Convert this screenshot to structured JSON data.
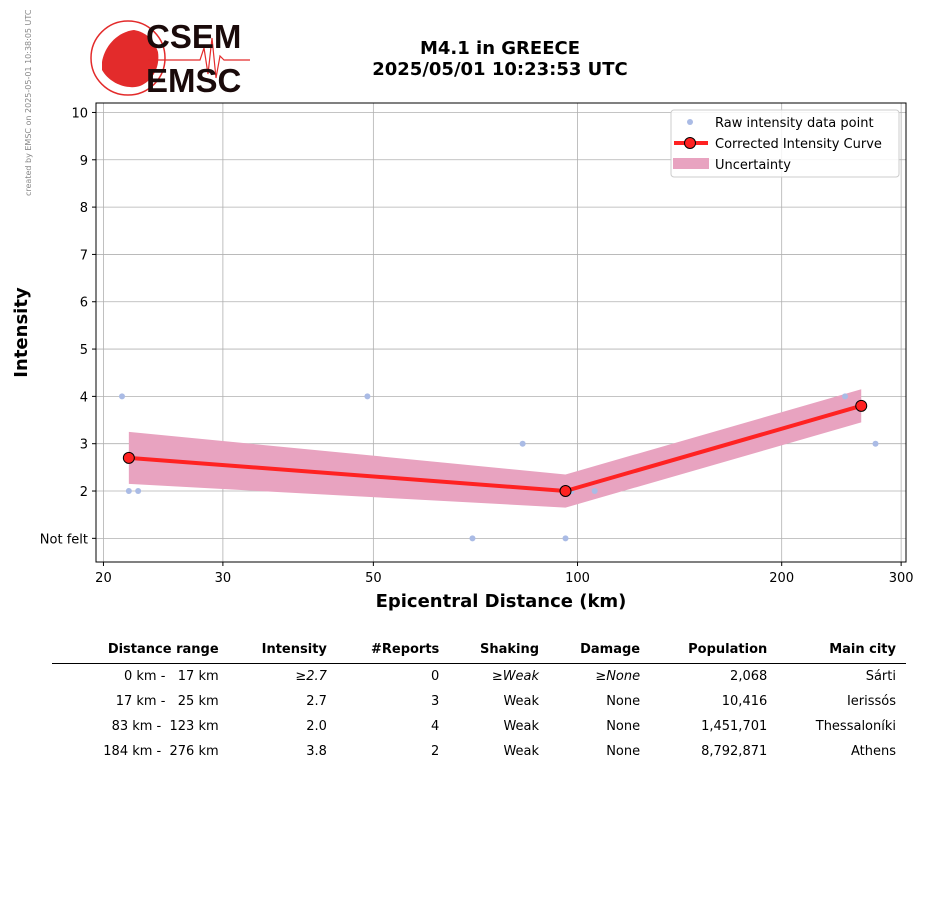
{
  "credit": "created by EMSC on 2025-05-01 10:38:05 UTC",
  "logo": {
    "line1": "CSEM",
    "line2": "EMSC",
    "red": "#e32b2b",
    "dark": "#1a0a0a"
  },
  "title": {
    "line1": "M4.1 in GREECE",
    "line2": "2025/05/01 10:23:53 UTC"
  },
  "chart_data": {
    "type": "scatter",
    "xscale": "log",
    "xlabel": "Epicentral Distance (km)",
    "ylabel": "Intensity",
    "xlim": [
      19.5,
      305
    ],
    "ylim": [
      0.5,
      10.2
    ],
    "xticks": [
      20,
      30,
      50,
      100,
      200,
      300
    ],
    "xtick_labels": [
      "20",
      "30",
      "50",
      "100",
      "200",
      "300"
    ],
    "yticks": [
      1,
      2,
      3,
      4,
      5,
      6,
      7,
      8,
      9,
      10
    ],
    "ytick_labels": [
      "Not felt",
      "2",
      "3",
      "4",
      "5",
      "6",
      "7",
      "8",
      "9",
      "10"
    ],
    "grid": true,
    "legend_position": "top-right",
    "legend": [
      "Raw intensity data point",
      "Corrected Intensity Curve",
      "Uncertainty"
    ],
    "colors": {
      "raw": "#aabbe5",
      "curve": "#ff2222",
      "band": "#e8a3c0",
      "marker_edge": "#000000"
    },
    "raw_points": [
      {
        "x": 21.3,
        "y": 4
      },
      {
        "x": 21.8,
        "y": 2
      },
      {
        "x": 22.5,
        "y": 2
      },
      {
        "x": 49,
        "y": 4
      },
      {
        "x": 70,
        "y": 1
      },
      {
        "x": 83,
        "y": 3
      },
      {
        "x": 96,
        "y": 1
      },
      {
        "x": 98,
        "y": 2
      },
      {
        "x": 106,
        "y": 2
      },
      {
        "x": 248,
        "y": 4
      },
      {
        "x": 275,
        "y": 3
      }
    ],
    "curve": {
      "x": [
        21.8,
        96,
        262
      ],
      "y": [
        2.7,
        2.0,
        3.8
      ],
      "upper": [
        3.25,
        2.35,
        4.15
      ],
      "lower": [
        2.15,
        1.65,
        3.45
      ]
    }
  },
  "table": {
    "headers": [
      "Distance range",
      "Intensity",
      "#Reports",
      "Shaking",
      "Damage",
      "Population",
      "Main city"
    ],
    "rows": [
      [
        "0 km -   17 km",
        "≥2.7",
        "0",
        "≥Weak",
        "≥None",
        "2,068",
        "Sárti"
      ],
      [
        "17 km -   25 km",
        "2.7",
        "3",
        "Weak",
        "None",
        "10,416",
        "Ierissós"
      ],
      [
        "83 km -  123 km",
        "2.0",
        "4",
        "Weak",
        "None",
        "1,451,701",
        "Thessaloníki"
      ],
      [
        "184 km -  276 km",
        "3.8",
        "2",
        "Weak",
        "None",
        "8,792,871",
        "Athens"
      ]
    ]
  }
}
